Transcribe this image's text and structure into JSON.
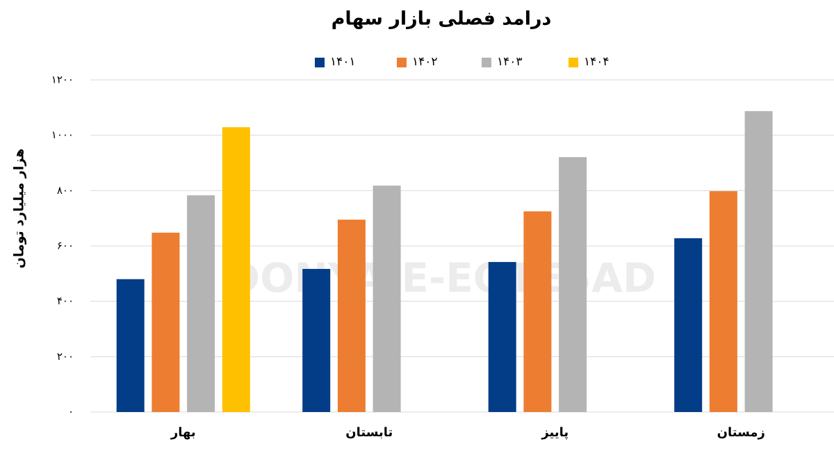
{
  "chart_data": {
    "type": "bar",
    "title": "درامد فصلی بازار سهام",
    "y_label": "هزار میلیارد تومان",
    "watermark": "DONYA-E-EQTESAD",
    "categories": [
      "بهار",
      "تابستان",
      "پاییز",
      "زمستان"
    ],
    "series": [
      {
        "name": "۱۴۰۱",
        "color": "#033c87",
        "values": [
          480,
          517,
          542,
          628
        ]
      },
      {
        "name": "۱۴۰۲",
        "color": "#ed7d31",
        "values": [
          648,
          695,
          725,
          798
        ]
      },
      {
        "name": "۱۴۰۳",
        "color": "#b4b4b4",
        "values": [
          783,
          818,
          921,
          1087
        ]
      },
      {
        "name": "۱۴۰۴",
        "color": "#ffc000",
        "values": [
          1029,
          null,
          null,
          null
        ]
      }
    ],
    "ylim": [
      0,
      1200
    ],
    "yticks": [
      {
        "value": 0,
        "label": "۰"
      },
      {
        "value": 200,
        "label": "۲۰۰"
      },
      {
        "value": 400,
        "label": "۴۰۰"
      },
      {
        "value": 600,
        "label": "۶۰۰"
      },
      {
        "value": 800,
        "label": "۸۰۰"
      },
      {
        "value": 1000,
        "label": "۱۰۰۰"
      },
      {
        "value": 1200,
        "label": "۱۲۰۰"
      }
    ],
    "grid": true
  }
}
